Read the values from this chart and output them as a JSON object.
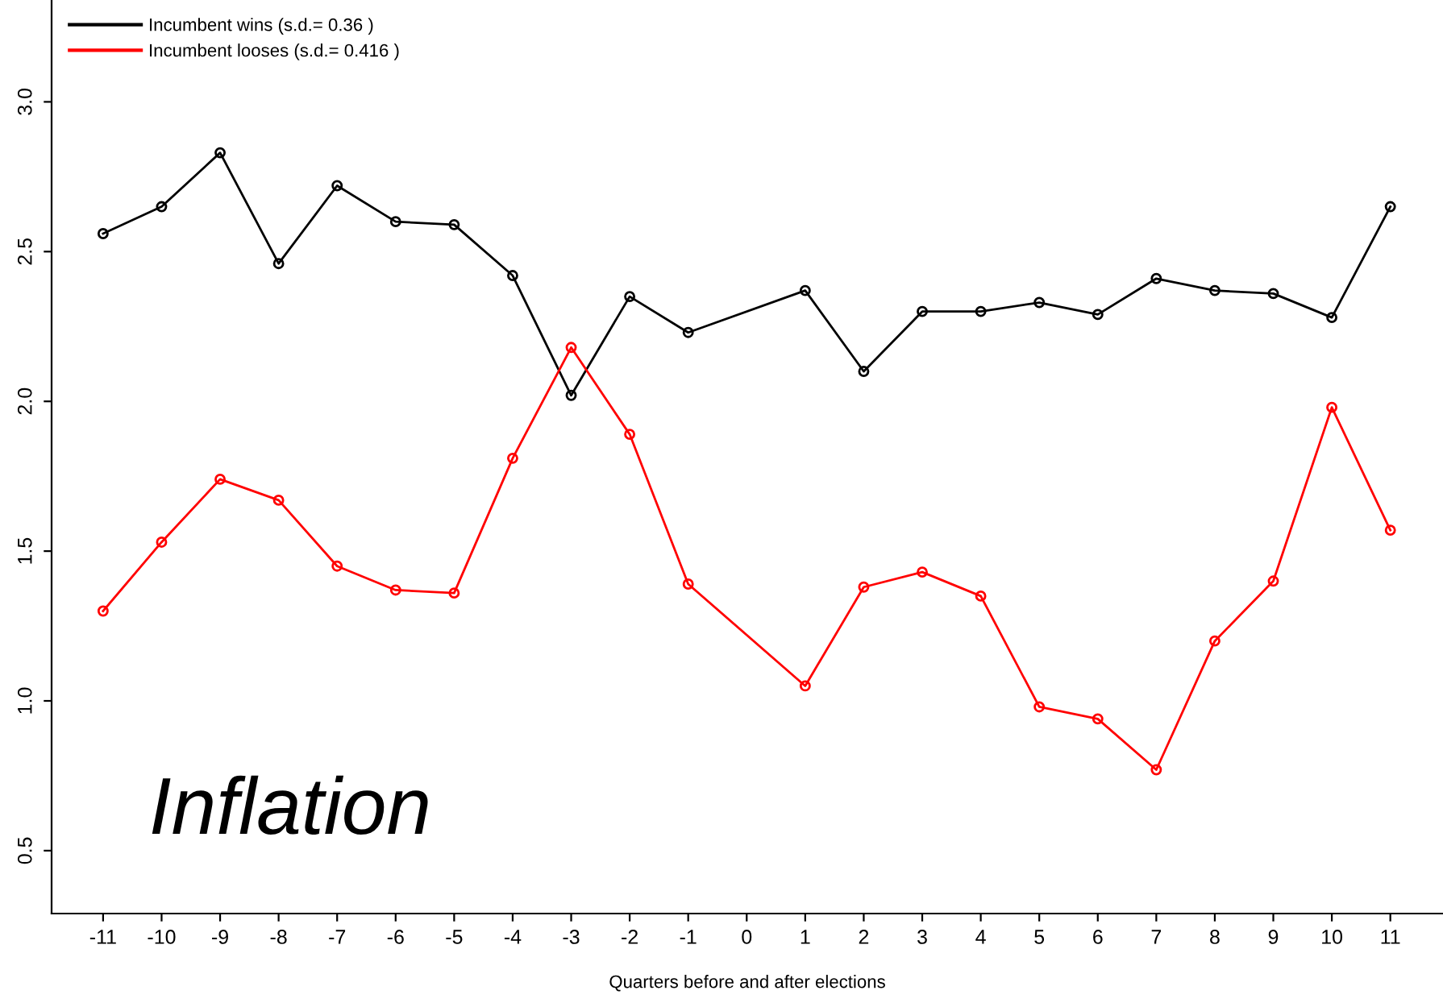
{
  "chart_data": {
    "type": "line",
    "xlabel": "Quarters before and after elections",
    "categories": [
      "-11",
      "-10",
      "-9",
      "-8",
      "-7",
      "-6",
      "-5",
      "-4",
      "-3",
      "-2",
      "-1",
      "0",
      "1",
      "2",
      "3",
      "4",
      "5",
      "6",
      "7",
      "8",
      "9",
      "10",
      "11"
    ],
    "series": [
      {
        "name": "Incumbent wins (s.d.= 0.36 )",
        "color": "#000000",
        "values": [
          2.56,
          2.65,
          2.83,
          2.46,
          2.72,
          2.6,
          2.59,
          2.42,
          2.02,
          2.35,
          2.23,
          null,
          2.37,
          2.1,
          2.3,
          2.3,
          2.33,
          2.29,
          2.41,
          2.37,
          2.36,
          2.28,
          2.65
        ]
      },
      {
        "name": "Incumbent looses (s.d.= 0.416 )",
        "color": "#ff0000",
        "values": [
          1.3,
          1.53,
          1.74,
          1.67,
          1.45,
          1.37,
          1.36,
          1.81,
          2.18,
          1.89,
          1.39,
          null,
          1.05,
          1.38,
          1.43,
          1.35,
          0.98,
          0.94,
          0.77,
          1.2,
          1.4,
          1.98,
          1.57
        ]
      }
    ],
    "annotations": [
      "Inflation"
    ],
    "ylim": [
      0.29,
      3.34
    ],
    "yticks": [
      0.5,
      {
        "value": 1,
        "label": "1.0"
      },
      1.5,
      {
        "value": 2,
        "label": "2.0"
      },
      2.5,
      {
        "value": 3,
        "label": "3.0"
      }
    ],
    "marker": "circle",
    "line_style": "solid",
    "grid": false,
    "legend": "top left"
  }
}
